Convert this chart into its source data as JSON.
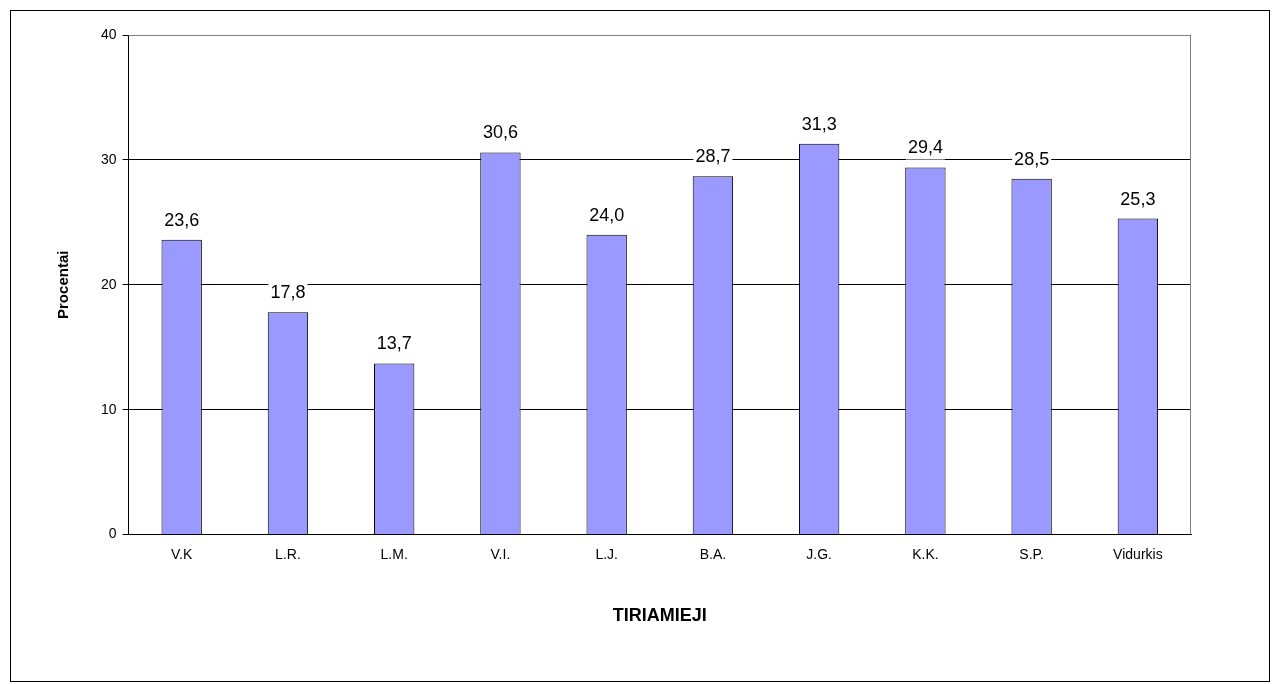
{
  "chart_data": {
    "type": "bar",
    "xlabel": "TIRIAMIEJI",
    "ylabel": "Procentai",
    "categories": [
      "V.K",
      "L.R.",
      "L.M.",
      "V.I.",
      "L.J.",
      "B.A.",
      "J.G.",
      "K.K.",
      "S.P.",
      "Vidurkis"
    ],
    "values": [
      23.6,
      17.8,
      13.7,
      30.6,
      24.0,
      28.7,
      31.3,
      29.4,
      28.5,
      25.3
    ],
    "value_labels": [
      "23,6",
      "17,8",
      "13,7",
      "30,6",
      "24,0",
      "28,7",
      "31,3",
      "29,4",
      "28,5",
      "25,3"
    ],
    "color": "#9999ff",
    "ylim": [
      0,
      40
    ],
    "yticks": [
      0,
      10,
      20,
      30,
      40
    ],
    "grid": "y"
  }
}
